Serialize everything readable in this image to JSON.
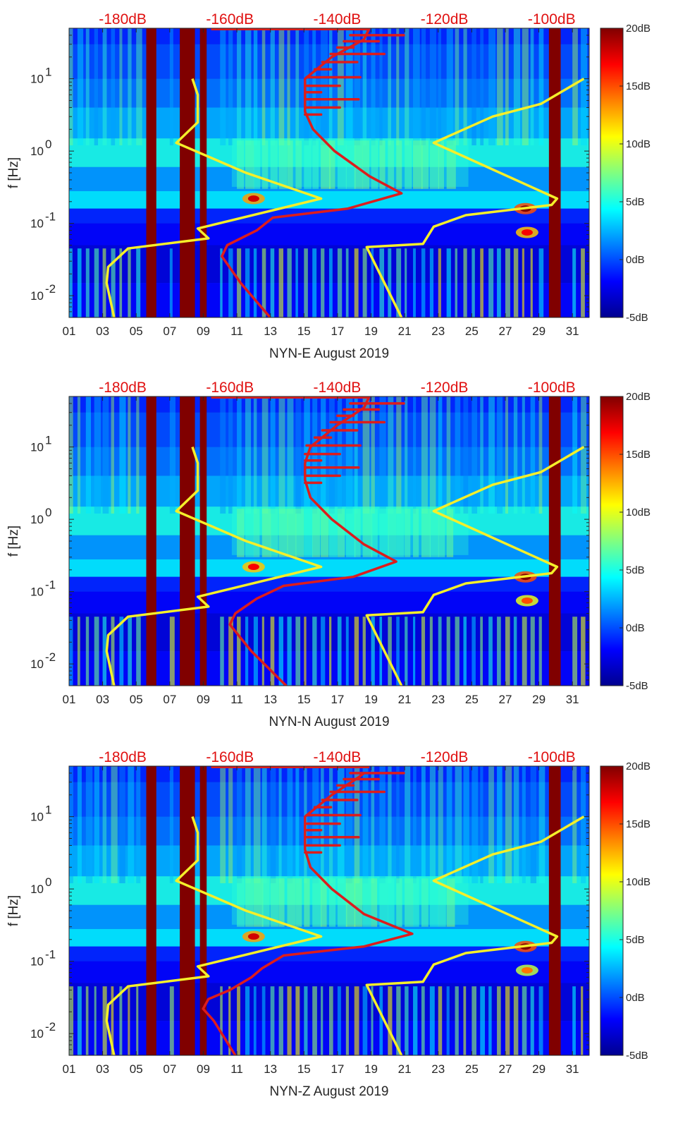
{
  "figure": {
    "colors": {
      "yellow_curve": "#f5ef2a",
      "red_curve": "#dd1c1c",
      "maroon_band": "#800000",
      "db_label": "#e01010"
    },
    "colormap": [
      "#00008f",
      "#0000ff",
      "#0080ff",
      "#00ffff",
      "#80ff80",
      "#ffff00",
      "#ff8000",
      "#ff0000",
      "#800000"
    ]
  },
  "chart_data": [
    {
      "type": "heatmap",
      "title": "",
      "xlabel": "NYN-E August 2019",
      "ylabel": "f [Hz]",
      "x_tick_labels": [
        "01",
        "03",
        "05",
        "07",
        "09",
        "11",
        "13",
        "15",
        "17",
        "19",
        "21",
        "23",
        "25",
        "27",
        "29",
        "31"
      ],
      "x_ticks": [
        1,
        3,
        5,
        7,
        9,
        11,
        13,
        15,
        17,
        19,
        21,
        23,
        25,
        27,
        29,
        31
      ],
      "xlim": [
        1,
        32
      ],
      "y_scale": "log",
      "ylim": [
        0.005,
        50
      ],
      "y_tick_labels": [
        "10^-2",
        "10^-1",
        "10^0",
        "10^1"
      ],
      "top_axis_labels": [
        "-180dB",
        "-160dB",
        "-140dB",
        "-120dB",
        "-100dB"
      ],
      "top_axis_range_db": [
        -190,
        -93
      ],
      "colorbar": {
        "labels": [
          "20dB",
          "15dB",
          "10dB",
          "5dB",
          "0dB",
          "-5dB"
        ],
        "range_db": [
          -5,
          20
        ]
      },
      "data_gaps_days": [
        [
          5.6,
          6.2
        ],
        [
          7.6,
          8.5
        ],
        [
          8.8,
          9.2
        ],
        [
          29.6,
          30.3
        ]
      ],
      "yellow_curve": {
        "name": "noise model (yellow)",
        "points_db_hz": [
          [
            -181.6,
            0.005
          ],
          [
            -183.0,
            0.015
          ],
          [
            -182.7,
            0.025
          ],
          [
            -179.0,
            0.045
          ],
          [
            -164.0,
            0.062
          ],
          [
            -166.0,
            0.085
          ],
          [
            -143.0,
            0.22
          ],
          [
            -157.0,
            0.5
          ],
          [
            -170.0,
            1.3
          ],
          [
            -166.0,
            2.5
          ],
          [
            -166.0,
            6.0
          ],
          [
            -167.0,
            10.0
          ],
          null,
          [
            -128.0,
            0.005
          ],
          [
            -134.5,
            0.047
          ],
          [
            -124.0,
            0.052
          ],
          [
            -122.0,
            0.09
          ],
          [
            -116.0,
            0.13
          ],
          [
            -100.0,
            0.18
          ],
          [
            -99.0,
            0.22
          ],
          [
            -122.0,
            1.3
          ],
          [
            -111.0,
            3.0
          ],
          [
            -102.0,
            4.5
          ],
          [
            -94.0,
            10.0
          ]
        ]
      },
      "red_curve": {
        "name": "station noise spectrum (red)",
        "points_db_hz": [
          [
            -152.5,
            0.005
          ],
          [
            -158.0,
            0.015
          ],
          [
            -161.5,
            0.035
          ],
          [
            -160.5,
            0.05
          ],
          [
            -155.0,
            0.08
          ],
          [
            -152.0,
            0.12
          ],
          [
            -138.0,
            0.16
          ],
          [
            -128.0,
            0.26
          ],
          [
            -134.0,
            0.45
          ],
          [
            -140.5,
            1.0
          ],
          [
            -144.5,
            2.0
          ],
          [
            -146.0,
            3.5
          ],
          [
            -146.0,
            6.0
          ],
          [
            -146.0,
            10.0
          ],
          [
            -141.0,
            20.0
          ],
          [
            -135.0,
            35.0
          ],
          [
            -134.0,
            50.0
          ]
        ]
      },
      "hotspots": [
        {
          "day": 12.0,
          "freq_hz": 0.22,
          "level_db": 18
        },
        {
          "day": 28.2,
          "freq_hz": 0.16,
          "level_db": 20
        },
        {
          "day": 28.3,
          "freq_hz": 0.075,
          "level_db": 17
        }
      ]
    },
    {
      "type": "heatmap",
      "title": "",
      "xlabel": "NYN-N August 2019",
      "ylabel": "f [Hz]",
      "x_tick_labels": [
        "01",
        "03",
        "05",
        "07",
        "09",
        "11",
        "13",
        "15",
        "17",
        "19",
        "21",
        "23",
        "25",
        "27",
        "29",
        "31"
      ],
      "x_ticks": [
        1,
        3,
        5,
        7,
        9,
        11,
        13,
        15,
        17,
        19,
        21,
        23,
        25,
        27,
        29,
        31
      ],
      "xlim": [
        1,
        32
      ],
      "y_scale": "log",
      "ylim": [
        0.005,
        50
      ],
      "y_tick_labels": [
        "10^-2",
        "10^-1",
        "10^0",
        "10^1"
      ],
      "top_axis_labels": [
        "-180dB",
        "-160dB",
        "-140dB",
        "-120dB",
        "-100dB"
      ],
      "top_axis_range_db": [
        -190,
        -93
      ],
      "colorbar": {
        "labels": [
          "20dB",
          "15dB",
          "10dB",
          "5dB",
          "0dB",
          "-5dB"
        ],
        "range_db": [
          -5,
          20
        ]
      },
      "data_gaps_days": [
        [
          5.6,
          6.2
        ],
        [
          7.6,
          8.5
        ],
        [
          8.8,
          9.2
        ],
        [
          29.6,
          30.3
        ]
      ],
      "yellow_curve": {
        "name": "noise model (yellow)",
        "points_db_hz": [
          [
            -181.6,
            0.005
          ],
          [
            -183.0,
            0.015
          ],
          [
            -182.7,
            0.025
          ],
          [
            -179.0,
            0.045
          ],
          [
            -164.0,
            0.062
          ],
          [
            -166.0,
            0.085
          ],
          [
            -143.0,
            0.22
          ],
          [
            -157.0,
            0.5
          ],
          [
            -170.0,
            1.3
          ],
          [
            -166.0,
            2.5
          ],
          [
            -166.0,
            6.0
          ],
          [
            -167.0,
            10.0
          ],
          null,
          [
            -128.0,
            0.005
          ],
          [
            -134.5,
            0.047
          ],
          [
            -124.0,
            0.052
          ],
          [
            -122.0,
            0.09
          ],
          [
            -116.0,
            0.13
          ],
          [
            -100.0,
            0.18
          ],
          [
            -99.0,
            0.22
          ],
          [
            -122.0,
            1.3
          ],
          [
            -111.0,
            3.0
          ],
          [
            -102.0,
            4.5
          ],
          [
            -94.0,
            10.0
          ]
        ]
      },
      "red_curve": {
        "name": "station noise spectrum (red)",
        "points_db_hz": [
          [
            -149.5,
            0.005
          ],
          [
            -156.0,
            0.015
          ],
          [
            -160.0,
            0.035
          ],
          [
            -159.0,
            0.05
          ],
          [
            -155.0,
            0.08
          ],
          [
            -150.0,
            0.12
          ],
          [
            -137.0,
            0.16
          ],
          [
            -129.0,
            0.26
          ],
          [
            -135.0,
            0.45
          ],
          [
            -141.0,
            1.0
          ],
          [
            -145.0,
            2.0
          ],
          [
            -146.0,
            3.5
          ],
          [
            -146.0,
            6.0
          ],
          [
            -145.0,
            10.0
          ],
          [
            -140.0,
            20.0
          ],
          [
            -135.0,
            35.0
          ],
          [
            -134.0,
            50.0
          ]
        ]
      },
      "hotspots": [
        {
          "day": 12.0,
          "freq_hz": 0.22,
          "level_db": 17
        },
        {
          "day": 28.2,
          "freq_hz": 0.16,
          "level_db": 20
        },
        {
          "day": 28.3,
          "freq_hz": 0.075,
          "level_db": 15
        }
      ]
    },
    {
      "type": "heatmap",
      "title": "",
      "xlabel": "NYN-Z August 2019",
      "ylabel": "f [Hz]",
      "x_tick_labels": [
        "01",
        "03",
        "05",
        "07",
        "09",
        "11",
        "13",
        "15",
        "17",
        "19",
        "21",
        "23",
        "25",
        "27",
        "29",
        "31"
      ],
      "x_ticks": [
        1,
        3,
        5,
        7,
        9,
        11,
        13,
        15,
        17,
        19,
        21,
        23,
        25,
        27,
        29,
        31
      ],
      "xlim": [
        1,
        32
      ],
      "y_scale": "log",
      "ylim": [
        0.005,
        50
      ],
      "y_tick_labels": [
        "10^-2",
        "10^-1",
        "10^0",
        "10^1"
      ],
      "top_axis_labels": [
        "-180dB",
        "-160dB",
        "-140dB",
        "-120dB",
        "-100dB"
      ],
      "top_axis_range_db": [
        -190,
        -93
      ],
      "colorbar": {
        "labels": [
          "20dB",
          "15dB",
          "10dB",
          "5dB",
          "0dB",
          "-5dB"
        ],
        "range_db": [
          -5,
          20
        ]
      },
      "data_gaps_days": [
        [
          5.6,
          6.2
        ],
        [
          7.6,
          8.5
        ],
        [
          8.8,
          9.2
        ],
        [
          29.6,
          30.3
        ]
      ],
      "yellow_curve": {
        "name": "noise model (yellow)",
        "points_db_hz": [
          [
            -181.6,
            0.005
          ],
          [
            -183.0,
            0.015
          ],
          [
            -182.7,
            0.025
          ],
          [
            -179.0,
            0.045
          ],
          [
            -164.0,
            0.062
          ],
          [
            -166.0,
            0.085
          ],
          [
            -143.0,
            0.22
          ],
          [
            -157.0,
            0.5
          ],
          [
            -170.0,
            1.3
          ],
          [
            -166.0,
            2.5
          ],
          [
            -166.0,
            6.0
          ],
          [
            -167.0,
            10.0
          ],
          null,
          [
            -128.0,
            0.005
          ],
          [
            -134.5,
            0.047
          ],
          [
            -124.0,
            0.052
          ],
          [
            -122.0,
            0.09
          ],
          [
            -116.0,
            0.13
          ],
          [
            -100.0,
            0.18
          ],
          [
            -99.0,
            0.22
          ],
          [
            -122.0,
            1.3
          ],
          [
            -111.0,
            3.0
          ],
          [
            -102.0,
            4.5
          ],
          [
            -94.0,
            10.0
          ]
        ]
      },
      "red_curve": {
        "name": "station noise spectrum (red)",
        "points_db_hz": [
          [
            -159.0,
            0.005
          ],
          [
            -163.0,
            0.015
          ],
          [
            -165.0,
            0.022
          ],
          [
            -164.0,
            0.03
          ],
          [
            -160.0,
            0.04
          ],
          [
            -156.0,
            0.06
          ],
          [
            -154.0,
            0.08
          ],
          [
            -150.0,
            0.12
          ],
          [
            -135.0,
            0.16
          ],
          [
            -126.0,
            0.24
          ],
          [
            -135.0,
            0.45
          ],
          [
            -141.0,
            1.0
          ],
          [
            -145.0,
            2.0
          ],
          [
            -146.0,
            3.5
          ],
          [
            -146.0,
            6.0
          ],
          [
            -146.0,
            10.0
          ],
          [
            -141.0,
            20.0
          ],
          [
            -136.0,
            35.0
          ],
          [
            -135.0,
            40.0
          ]
        ]
      },
      "hotspots": [
        {
          "day": 12.0,
          "freq_hz": 0.22,
          "level_db": 18
        },
        {
          "day": 28.2,
          "freq_hz": 0.16,
          "level_db": 20
        },
        {
          "day": 28.3,
          "freq_hz": 0.075,
          "level_db": 14
        }
      ]
    }
  ]
}
